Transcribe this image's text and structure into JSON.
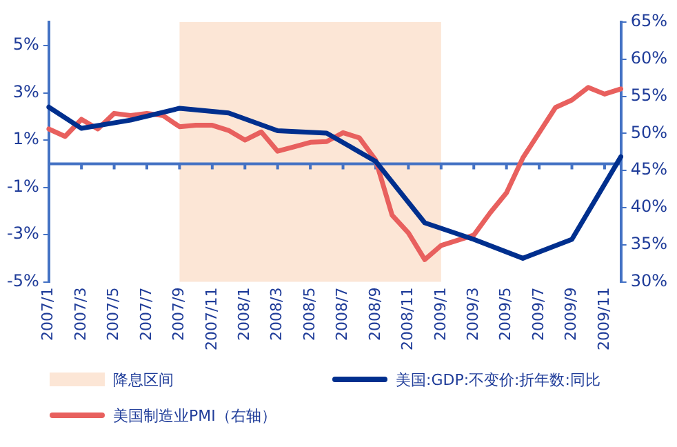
{
  "chart_data": {
    "type": "line",
    "categories": [
      "2007/1",
      null,
      "2007/3",
      null,
      "2007/5",
      null,
      "2007/7",
      null,
      "2007/9",
      null,
      "2007/11",
      null,
      "2008/1",
      null,
      "2008/3",
      null,
      "2008/5",
      null,
      "2008/7",
      null,
      "2008/9",
      null,
      "2008/11",
      null,
      "2009/1",
      null,
      "2009/3",
      null,
      "2009/5",
      null,
      "2009/7",
      null,
      "2009/9",
      null,
      "2009/11",
      null
    ],
    "series": [
      {
        "name": "美国:GDP:不变价:折年数:同比",
        "color": "#002f8e",
        "values": [
          2.4,
          null,
          1.5,
          null,
          null,
          1.85,
          null,
          null,
          2.35,
          null,
          null,
          2.15,
          null,
          null,
          1.4,
          null,
          null,
          1.3,
          null,
          null,
          0.1,
          null,
          null,
          -2.5,
          null,
          null,
          -3.2,
          null,
          null,
          -4.0,
          null,
          null,
          -3.2,
          null,
          null,
          0.3
        ]
      },
      {
        "name": "美国制造业PMI（右轴）",
        "color": "#e8605e",
        "axis": "y2",
        "values": [
          50.6,
          49.6,
          51.9,
          50.6,
          52.7,
          52.4,
          52.7,
          52.4,
          50.9,
          51.1,
          51.1,
          50.4,
          49.1,
          50.2,
          47.6,
          48.2,
          48.8,
          48.9,
          50.1,
          49.4,
          46.4,
          39.0,
          36.6,
          33.0,
          34.9,
          35.6,
          36.3,
          39.3,
          42.0,
          46.7,
          50.1,
          53.5,
          54.5,
          56.2,
          55.3,
          56.0
        ]
      }
    ],
    "ylim": [
      -5,
      6
    ],
    "yticks": [
      {
        "value": -5,
        "label": "-5%"
      },
      {
        "value": -3,
        "label": "-3%"
      },
      {
        "value": -1,
        "label": "-1%"
      },
      {
        "value": 1,
        "label": "1%"
      },
      {
        "value": 3,
        "label": "3%"
      },
      {
        "value": 5,
        "label": "5%"
      }
    ],
    "y2lim": [
      30,
      65
    ],
    "y2ticks": [
      {
        "value": 30,
        "label": "30%"
      },
      {
        "value": 35,
        "label": "35%"
      },
      {
        "value": 40,
        "label": "40%"
      },
      {
        "value": 45,
        "label": "45%"
      },
      {
        "value": 50,
        "label": "50%"
      },
      {
        "value": 55,
        "label": "55%"
      },
      {
        "value": 60,
        "label": "60%"
      },
      {
        "value": 65,
        "label": "65%"
      }
    ],
    "bands": [
      {
        "axis": "x",
        "from": "2007/9",
        "to": "2009/1",
        "label": "降息区间",
        "color": "#fce6d6"
      }
    ],
    "ref_lines": [
      {
        "axis": "y",
        "value": 0,
        "color": "#4472c4"
      }
    ],
    "grid": false,
    "legend": "bottom",
    "marker": "none",
    "line_style": "solid"
  }
}
